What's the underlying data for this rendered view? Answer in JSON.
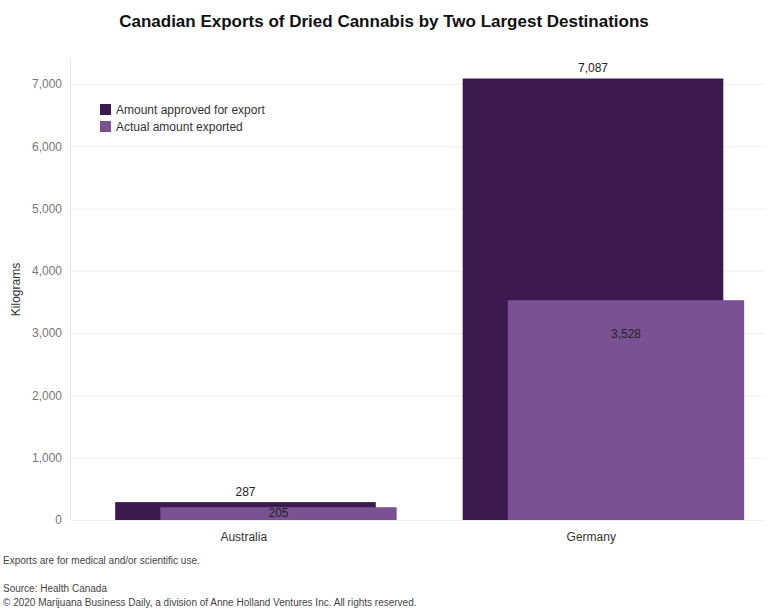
{
  "chart_data": {
    "type": "bar",
    "title": "Canadian Exports of Dried Cannabis by Two Largest Destinations",
    "y_label": "Kilograms",
    "categories": [
      "Australia",
      "Germany"
    ],
    "series": [
      {
        "name": "Amount approved for export",
        "color": "#3b1a50",
        "values": [
          287,
          7087
        ]
      },
      {
        "name": "Actual amount exported",
        "color": "#7a5294",
        "values": [
          205,
          3528
        ]
      }
    ],
    "value_labels": [
      [
        "287",
        "7,087"
      ],
      [
        "205",
        "3,528"
      ]
    ],
    "ylim": [
      0,
      7400
    ],
    "yticks": [
      0,
      {
        "value": 1000,
        "label": "1,000"
      },
      {
        "value": 2000,
        "label": "2,000"
      },
      {
        "value": 3000,
        "label": "3,000"
      },
      {
        "value": 4000,
        "label": "4,000"
      },
      {
        "value": 5000,
        "label": "5,000"
      },
      {
        "value": 6000,
        "label": "6,000"
      },
      {
        "value": 7000,
        "label": "7,000"
      }
    ],
    "grid": true,
    "legend": "upper left",
    "data_labels": true,
    "notes": [
      "Exports are for medical and/or scientific use.",
      "Source: Health Canada",
      "© 2020 Marijuana Business Daily, a division of Anne Holland Ventures Inc. All rights reserved."
    ]
  }
}
